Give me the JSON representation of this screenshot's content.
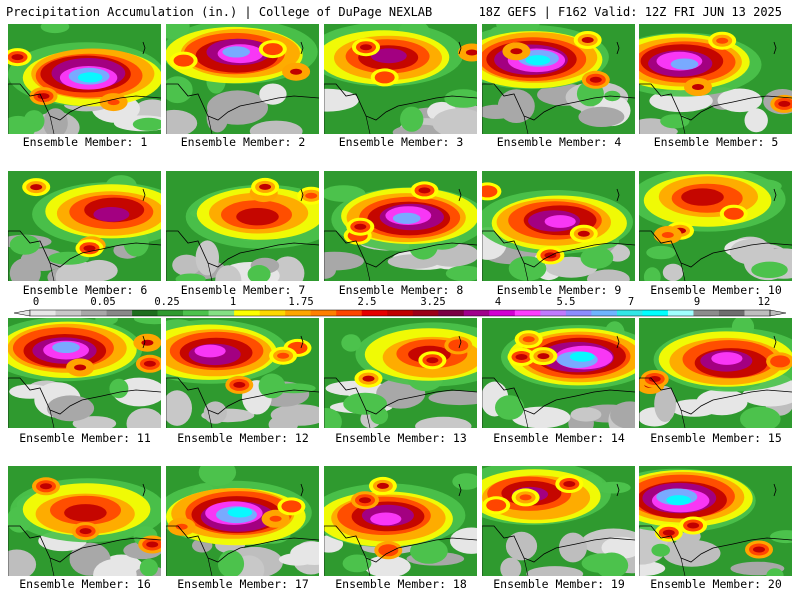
{
  "header": {
    "left": "Precipitation Accumulation (in.) | College of DuPage NEXLAB",
    "right": "18Z GEFS | F162 Valid: 12Z FRI JUN 13 2025"
  },
  "caption_prefix": "Ensemble Member: ",
  "members": [
    "1",
    "2",
    "3",
    "4",
    "5",
    "6",
    "7",
    "8",
    "9",
    "10",
    "11",
    "12",
    "13",
    "14",
    "15",
    "16",
    "17",
    "18",
    "19",
    "20"
  ],
  "scale": {
    "tick_labels": [
      "0",
      "0.05",
      "0.25",
      "1",
      "1.75",
      "2.5",
      "3.25",
      "4",
      "5.5",
      "7",
      "9",
      "12"
    ],
    "colors": [
      "#e6e6e6",
      "#c8c8c8",
      "#a8a8a8",
      "#888888",
      "#1e6e1e",
      "#2f9a2f",
      "#4cc24c",
      "#84e084",
      "#ffff00",
      "#ffd700",
      "#ffa500",
      "#ff7f00",
      "#ff4500",
      "#e60000",
      "#c00000",
      "#9c0018",
      "#7a0044",
      "#a0008c",
      "#d200d2",
      "#ff3cff",
      "#c07aff",
      "#8c8cff",
      "#6eb4ff",
      "#32e6e6",
      "#00ffff",
      "#a0ffff",
      "#8c8c8c",
      "#6e6e6e",
      "#bebebe"
    ]
  }
}
